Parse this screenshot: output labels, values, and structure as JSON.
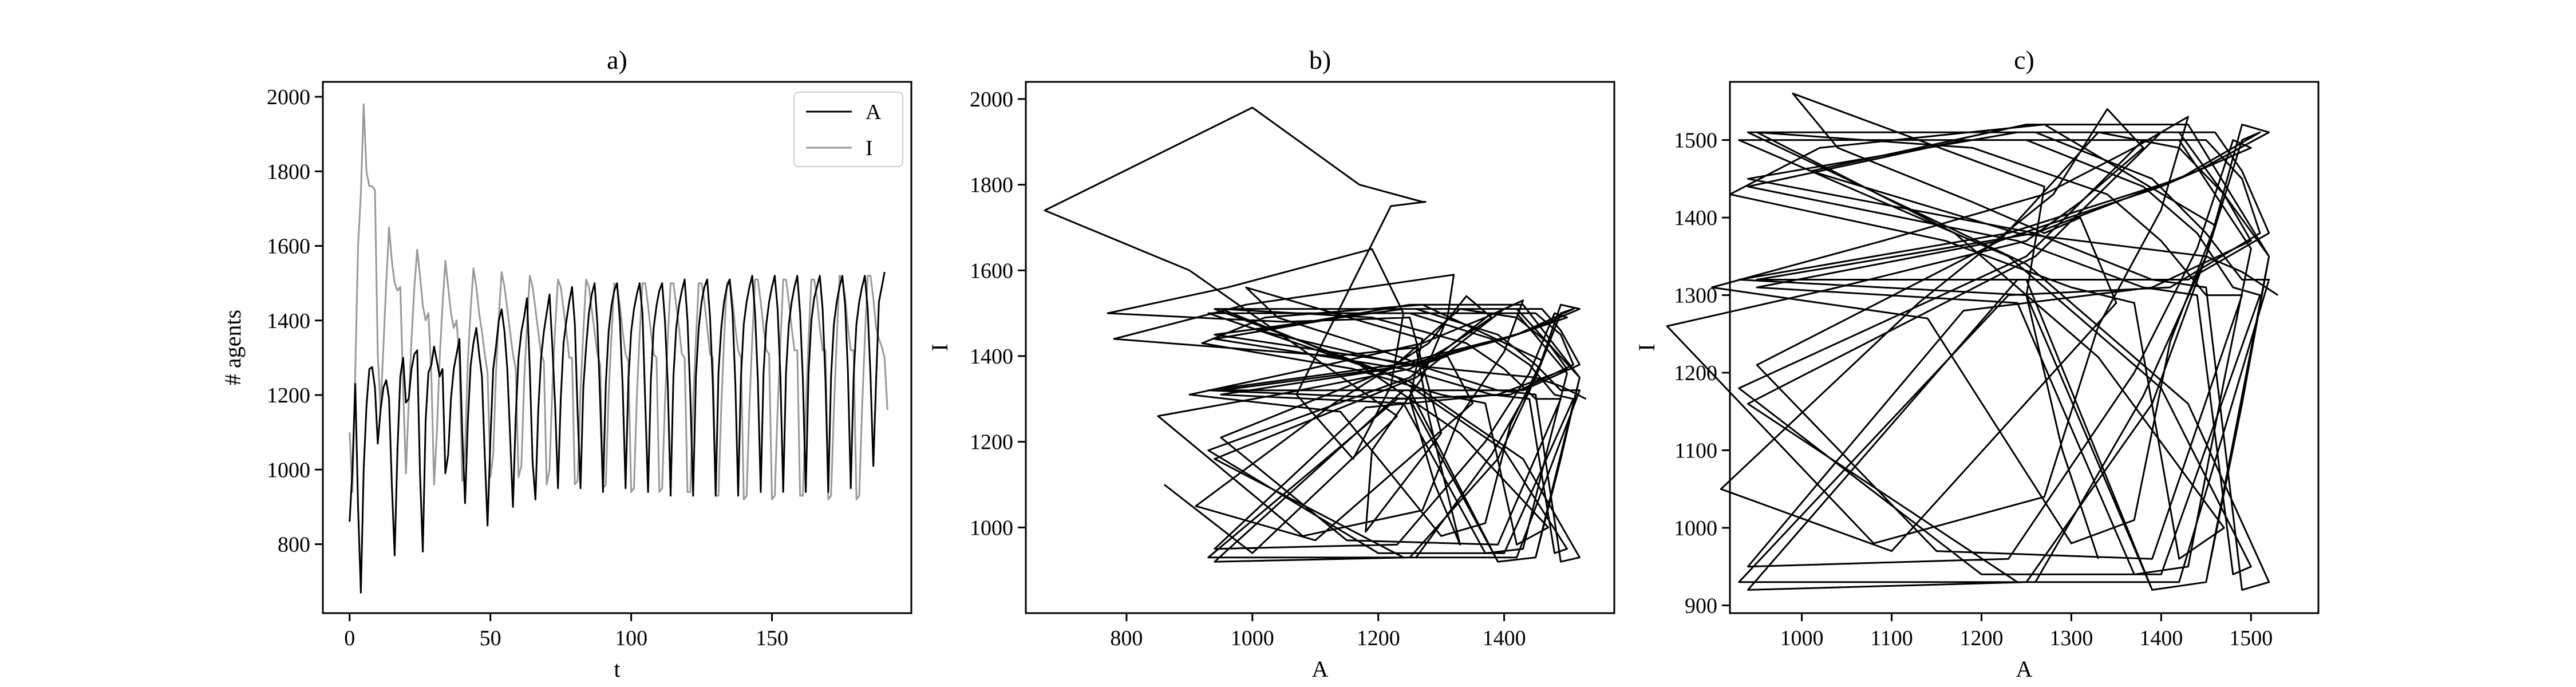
{
  "chart_data": [
    {
      "type": "line",
      "title": "a)",
      "xlabel": "t",
      "ylabel": "# agents",
      "xlim": [
        -9.5,
        199.5
      ],
      "ylim": [
        615,
        2040
      ],
      "xticks": [
        0,
        50,
        100,
        150
      ],
      "yticks": [
        800,
        1000,
        1200,
        1400,
        1600,
        1800,
        2000
      ],
      "legend_position": "top-right",
      "series": [
        {
          "name": "A",
          "color": "#000000",
          "x_start": 0,
          "x_step": 1,
          "values": [
            860,
            1000,
            1230,
            900,
            670,
            1000,
            1170,
            1270,
            1275,
            1220,
            1070,
            1160,
            1220,
            1240,
            1190,
            960,
            770,
            1050,
            1250,
            1300,
            1180,
            1190,
            1270,
            1310,
            1320,
            990,
            780,
            1130,
            1260,
            1280,
            1330,
            1290,
            1250,
            1270,
            990,
            1040,
            1190,
            1270,
            1310,
            1350,
            1100,
            910,
            1130,
            1280,
            1340,
            1380,
            1310,
            1250,
            1040,
            850,
            1080,
            1270,
            1330,
            1400,
            1430,
            1370,
            1270,
            1090,
            900,
            1140,
            1300,
            1370,
            1410,
            1460,
            1270,
            1020,
            920,
            1160,
            1300,
            1370,
            1420,
            1470,
            1330,
            1170,
            950,
            1190,
            1340,
            1400,
            1450,
            1490,
            1390,
            1150,
            950,
            1220,
            1330,
            1420,
            1470,
            1500,
            1390,
            1180,
            940,
            1230,
            1370,
            1440,
            1480,
            1500,
            1400,
            1220,
            950,
            1240,
            1370,
            1430,
            1470,
            1500,
            1420,
            1180,
            940,
            1240,
            1380,
            1440,
            1480,
            1500,
            1400,
            1230,
            930,
            1250,
            1380,
            1440,
            1480,
            1510,
            1400,
            1200,
            930,
            1250,
            1380,
            1450,
            1490,
            1510,
            1410,
            1230,
            930,
            1260,
            1380,
            1450,
            1490,
            1510,
            1420,
            1230,
            930,
            1250,
            1390,
            1450,
            1490,
            1520,
            1420,
            1240,
            940,
            1260,
            1390,
            1450,
            1490,
            1520,
            1430,
            1250,
            940,
            1260,
            1390,
            1450,
            1490,
            1520,
            1420,
            1240,
            940,
            1260,
            1400,
            1460,
            1490,
            1520,
            1430,
            1240,
            940,
            1250,
            1390,
            1450,
            1490,
            1520,
            1440,
            1260,
            950,
            1250,
            1390,
            1450,
            1490,
            1520,
            1430,
            1250,
            1010,
            1240,
            1450,
            1490,
            1530
          ]
        },
        {
          "name": "I",
          "color": "#999999",
          "x_start": 0,
          "x_step": 1,
          "values": [
            1100,
            940,
            1260,
            1600,
            1740,
            1980,
            1800,
            1760,
            1760,
            1750,
            1310,
            1160,
            1330,
            1500,
            1650,
            1560,
            1500,
            1480,
            1490,
            1220,
            990,
            1180,
            1350,
            1490,
            1590,
            1520,
            1440,
            1400,
            1420,
            1260,
            960,
            1100,
            1300,
            1440,
            1560,
            1490,
            1420,
            1380,
            1400,
            1290,
            970,
            1050,
            1290,
            1430,
            1540,
            1490,
            1420,
            1370,
            1310,
            1260,
            980,
            1040,
            1260,
            1410,
            1530,
            1490,
            1430,
            1370,
            1310,
            1270,
            980,
            1010,
            1240,
            1390,
            1520,
            1490,
            1430,
            1370,
            1310,
            1290,
            960,
            1000,
            1220,
            1380,
            1510,
            1490,
            1430,
            1370,
            1300,
            1300,
            960,
            970,
            1210,
            1370,
            1510,
            1490,
            1430,
            1370,
            1310,
            1280,
            950,
            960,
            1200,
            1360,
            1500,
            1490,
            1440,
            1370,
            1310,
            1290,
            940,
            950,
            1190,
            1360,
            1500,
            1500,
            1440,
            1370,
            1310,
            1300,
            940,
            950,
            1180,
            1350,
            1500,
            1500,
            1440,
            1380,
            1310,
            1300,
            940,
            940,
            1180,
            1350,
            1500,
            1500,
            1450,
            1380,
            1310,
            1300,
            930,
            930,
            1170,
            1350,
            1500,
            1510,
            1450,
            1380,
            1320,
            1300,
            920,
            930,
            1170,
            1350,
            1510,
            1510,
            1450,
            1380,
            1320,
            1310,
            920,
            930,
            1160,
            1340,
            1510,
            1510,
            1450,
            1380,
            1320,
            1320,
            930,
            930,
            1160,
            1350,
            1510,
            1510,
            1460,
            1380,
            1320,
            1320,
            920,
            930,
            1160,
            1350,
            1520,
            1510,
            1460,
            1380,
            1320,
            1320,
            920,
            930,
            1160,
            1350,
            1520,
            1520,
            1460,
            1380,
            1350,
            1330,
            1300,
            1160
          ]
        }
      ]
    },
    {
      "type": "line",
      "title": "b)",
      "xlabel": "A",
      "ylabel": "I",
      "xlim": [
        640,
        1575
      ],
      "ylim": [
        800,
        2040
      ],
      "xticks": [
        800,
        1000,
        1200,
        1400
      ],
      "yticks": [
        1000,
        1200,
        1400,
        1600,
        1800,
        2000
      ],
      "series": [
        {
          "name": "",
          "color": "#000000",
          "x_ref": "a.A",
          "y_ref": "a.I"
        }
      ]
    },
    {
      "type": "line",
      "title": "c)",
      "xlabel": "A",
      "ylabel": "I",
      "xlim": [
        920,
        1575
      ],
      "ylim": [
        890,
        1575
      ],
      "xticks": [
        1000,
        1100,
        1200,
        1300,
        1400,
        1500
      ],
      "yticks": [
        900,
        1000,
        1100,
        1200,
        1300,
        1400,
        1500
      ],
      "series": [
        {
          "name": "",
          "color": "#000000",
          "x_ref": "a.A",
          "y_ref": "a.I",
          "start_index": 30
        }
      ]
    }
  ]
}
